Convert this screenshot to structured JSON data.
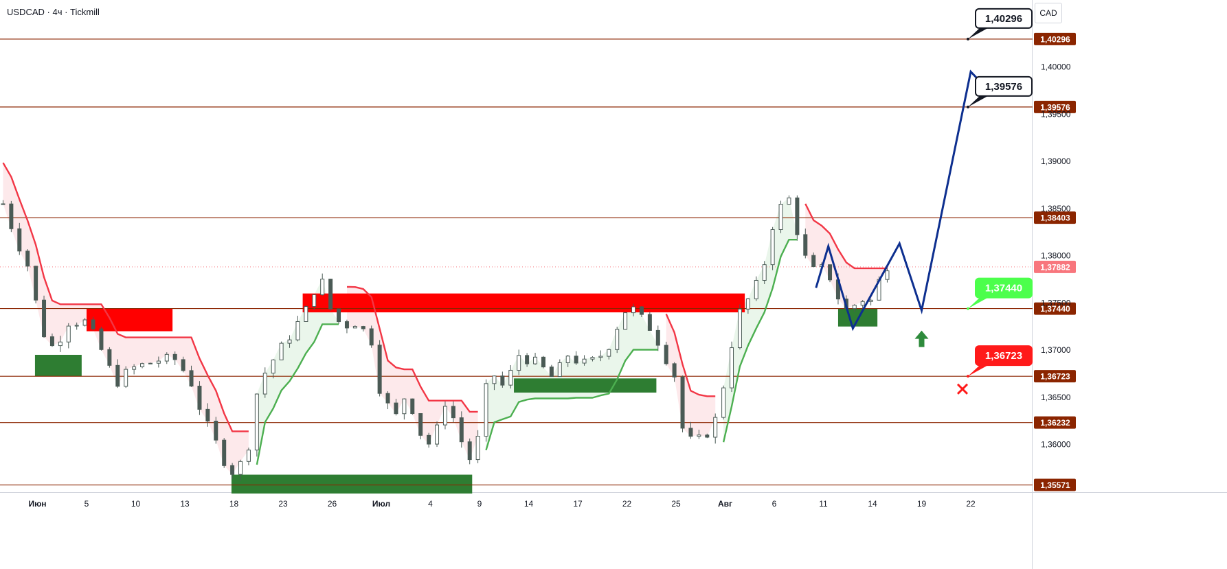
{
  "header": {
    "symbol": "USDCAD",
    "sep1": " · ",
    "interval": "4ч",
    "sep2": " · ",
    "broker": "Tickmill"
  },
  "currency_label": "CAD",
  "colors": {
    "level_line": "#8b2500",
    "level_tag": "#8b2500",
    "supertrend_up": "#4caf50",
    "supertrend_down": "#f23645",
    "fill_up": "#e8f5e9",
    "fill_down": "#fde7e9",
    "zone_red": "#ff0000",
    "zone_green": "#2e7d32",
    "forecast": "#0d2f8f",
    "candle": "#4a5a55",
    "current_price_tag": "#f8767d",
    "target_green": "#4cff4c",
    "stop_red": "#ff1a1a"
  },
  "chart_data": {
    "type": "candlestick",
    "ylim": [
      1.35495,
      1.4071
    ],
    "y_ticks": [
      {
        "value": 1.4,
        "label": "1,40000"
      },
      {
        "value": 1.395,
        "label": "1,39500"
      },
      {
        "value": 1.39,
        "label": "1,39000"
      },
      {
        "value": 1.385,
        "label": "1,38500"
      },
      {
        "value": 1.38,
        "label": "1,38000"
      },
      {
        "value": 1.375,
        "label": "1,37500"
      },
      {
        "value": 1.37,
        "label": "1,37000"
      },
      {
        "value": 1.365,
        "label": "1,36500"
      },
      {
        "value": 1.36,
        "label": "1,36000"
      }
    ],
    "x_ticks": [
      "Июн",
      "5",
      "10",
      "13",
      "18",
      "23",
      "26",
      "Июл",
      "4",
      "9",
      "14",
      "17",
      "22",
      "25",
      "Авг",
      "6",
      "11",
      "14",
      "19",
      "22"
    ],
    "bold_x_ticks": [
      "Июн",
      "Июл",
      "Авг"
    ],
    "levels": [
      {
        "value": 1.40296,
        "label": "1,40296"
      },
      {
        "value": 1.39576,
        "label": "1,39576"
      },
      {
        "value": 1.38403,
        "label": "1,38403"
      },
      {
        "value": 1.3744,
        "label": "1,37440"
      },
      {
        "value": 1.36723,
        "label": "1,36723"
      },
      {
        "value": 1.36232,
        "label": "1,36232"
      },
      {
        "value": 1.35571,
        "label": "1,35571"
      }
    ],
    "current_price": {
      "value": 1.37882,
      "label": "1,37882"
    },
    "callouts": [
      {
        "label": "1,40296",
        "style": "black"
      },
      {
        "label": "1,39576",
        "style": "black"
      },
      {
        "label": "1,37440",
        "style": "green"
      },
      {
        "label": "1,36723",
        "style": "red"
      }
    ],
    "zones_red": [
      {
        "x_from": 1.0,
        "x_to": 2.75,
        "y_from": 1.3744,
        "y_to": 1.372
      },
      {
        "x_from": 5.4,
        "x_to": 14.4,
        "y_from": 1.376,
        "y_to": 1.374
      }
    ],
    "zones_green": [
      {
        "x_from": -0.05,
        "x_to": 0.9,
        "y_from": 1.3695,
        "y_to": 1.3672
      },
      {
        "x_from": 3.95,
        "x_to": 8.85,
        "y_from": 1.3568,
        "y_to": 1.3548
      },
      {
        "x_from": 9.7,
        "x_to": 12.6,
        "y_from": 1.367,
        "y_to": 1.3655
      },
      {
        "x_from": 16.3,
        "x_to": 17.1,
        "y_from": 1.3744,
        "y_to": 1.3725
      }
    ],
    "forecast_path": [
      [
        15.85,
        1.3766
      ],
      [
        16.1,
        1.381
      ],
      [
        16.6,
        1.3723
      ],
      [
        17.55,
        1.3813
      ],
      [
        18.0,
        1.3742
      ],
      [
        19.0,
        1.3995
      ],
      [
        19.35,
        1.3976
      ]
    ],
    "up_arrow_x": 18.0,
    "up_arrow_y": 1.3712,
    "stop_marker": {
      "x": 19.0,
      "y": 1.3666
    }
  }
}
